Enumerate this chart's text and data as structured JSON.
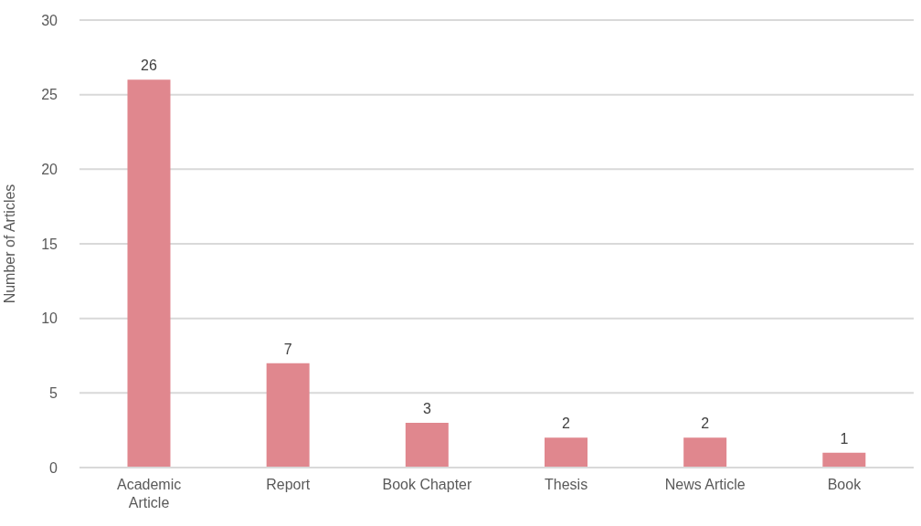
{
  "chart_data": {
    "type": "bar",
    "ylabel": "Number of Articles",
    "categories": [
      "Academic Article",
      "Report",
      "Book Chapter",
      "Thesis",
      "News Article",
      "Book"
    ],
    "values": [
      26,
      7,
      3,
      2,
      2,
      1
    ],
    "color": "#e0878e",
    "ylim": [
      0,
      30
    ],
    "yticks": [
      0,
      5,
      10,
      15,
      20,
      25,
      30
    ],
    "grid": "y",
    "data_labels": true
  }
}
